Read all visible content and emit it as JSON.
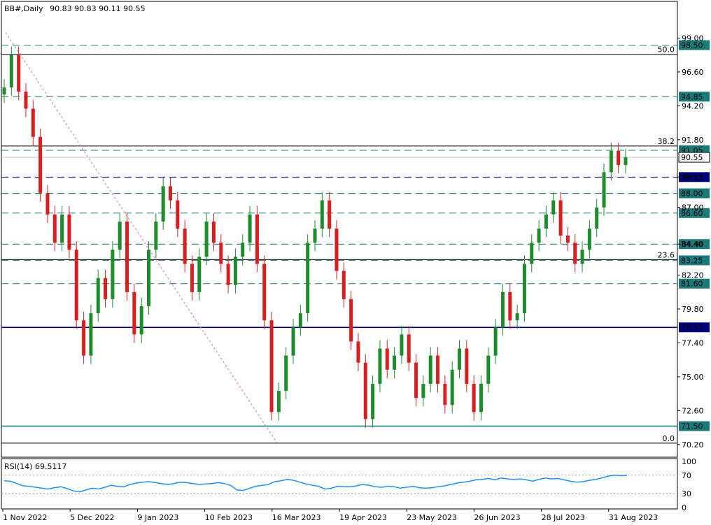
{
  "header": {
    "symbol": "BB#,Daily",
    "ohlc": "90.83 90.83 90.11 90.55"
  },
  "rsi_header": "RSI(14) 69.5117",
  "chart_data": [
    {
      "type": "candlestick",
      "title": "BB#,Daily",
      "ylim": [
        69.3,
        101.6
      ],
      "y_ticks": [
        "99.00",
        "96.60",
        "94.20",
        "91.80",
        "89.15",
        "87.00",
        "84.40",
        "82.20",
        "79.80",
        "77.40",
        "75.00",
        "72.60",
        "70.20"
      ],
      "x_ticks": [
        "1 Nov 2022",
        "5 Dec 2022",
        "9 Jan 2023",
        "10 Feb 2023",
        "16 Mar 2023",
        "19 Apr 2023",
        "23 May 2023",
        "26 Jun 2023",
        "28 Jul 2023",
        "31 Aug 2023"
      ],
      "up_color": "#1e8c2c",
      "down_color": "#d81e1e",
      "series_close": [
        {
          "date": "2022-11-01",
          "close": 95.5
        },
        {
          "date": "2022-11-04",
          "close": 97.8
        },
        {
          "date": "2022-11-08",
          "close": 95.2
        },
        {
          "date": "2022-11-11",
          "close": 94.0
        },
        {
          "date": "2022-11-15",
          "close": 92.0
        },
        {
          "date": "2022-11-18",
          "close": 88.0
        },
        {
          "date": "2022-11-22",
          "close": 86.5
        },
        {
          "date": "2022-11-25",
          "close": 84.5
        },
        {
          "date": "2022-11-29",
          "close": 86.5
        },
        {
          "date": "2022-12-02",
          "close": 84.0
        },
        {
          "date": "2022-12-06",
          "close": 79.0
        },
        {
          "date": "2022-12-09",
          "close": 76.5
        },
        {
          "date": "2022-12-13",
          "close": 79.5
        },
        {
          "date": "2022-12-16",
          "close": 82.0
        },
        {
          "date": "2022-12-20",
          "close": 80.5
        },
        {
          "date": "2022-12-23",
          "close": 84.0
        },
        {
          "date": "2022-12-28",
          "close": 86.0
        },
        {
          "date": "2022-12-31",
          "close": 81.0
        },
        {
          "date": "2023-01-04",
          "close": 78.0
        },
        {
          "date": "2023-01-09",
          "close": 80.0
        },
        {
          "date": "2023-01-13",
          "close": 84.0
        },
        {
          "date": "2023-01-17",
          "close": 86.0
        },
        {
          "date": "2023-01-20",
          "close": 88.5
        },
        {
          "date": "2023-01-24",
          "close": 87.5
        },
        {
          "date": "2023-01-27",
          "close": 85.5
        },
        {
          "date": "2023-01-31",
          "close": 83.0
        },
        {
          "date": "2023-02-03",
          "close": 81.0
        },
        {
          "date": "2023-02-07",
          "close": 83.5
        },
        {
          "date": "2023-02-10",
          "close": 86.0
        },
        {
          "date": "2023-02-14",
          "close": 84.5
        },
        {
          "date": "2023-02-17",
          "close": 83.0
        },
        {
          "date": "2023-02-21",
          "close": 81.5
        },
        {
          "date": "2023-02-24",
          "close": 83.5
        },
        {
          "date": "2023-02-28",
          "close": 84.5
        },
        {
          "date": "2023-03-03",
          "close": 86.5
        },
        {
          "date": "2023-03-07",
          "close": 83.0
        },
        {
          "date": "2023-03-10",
          "close": 79.0
        },
        {
          "date": "2023-03-14",
          "close": 72.5
        },
        {
          "date": "2023-03-17",
          "close": 74.0
        },
        {
          "date": "2023-03-21",
          "close": 76.5
        },
        {
          "date": "2023-03-24",
          "close": 78.5
        },
        {
          "date": "2023-03-28",
          "close": 79.5
        },
        {
          "date": "2023-04-04",
          "close": 84.5
        },
        {
          "date": "2023-04-07",
          "close": 85.5
        },
        {
          "date": "2023-04-11",
          "close": 87.5
        },
        {
          "date": "2023-04-14",
          "close": 85.5
        },
        {
          "date": "2023-04-18",
          "close": 82.5
        },
        {
          "date": "2023-04-21",
          "close": 80.5
        },
        {
          "date": "2023-04-25",
          "close": 77.5
        },
        {
          "date": "2023-04-28",
          "close": 76.0
        },
        {
          "date": "2023-05-02",
          "close": 72.0
        },
        {
          "date": "2023-05-05",
          "close": 74.5
        },
        {
          "date": "2023-05-09",
          "close": 77.0
        },
        {
          "date": "2023-05-12",
          "close": 75.5
        },
        {
          "date": "2023-05-16",
          "close": 76.5
        },
        {
          "date": "2023-05-19",
          "close": 78.0
        },
        {
          "date": "2023-05-23",
          "close": 76.0
        },
        {
          "date": "2023-05-26",
          "close": 73.5
        },
        {
          "date": "2023-05-30",
          "close": 74.5
        },
        {
          "date": "2023-06-02",
          "close": 76.5
        },
        {
          "date": "2023-06-06",
          "close": 74.5
        },
        {
          "date": "2023-06-09",
          "close": 73.0
        },
        {
          "date": "2023-06-13",
          "close": 75.5
        },
        {
          "date": "2023-06-16",
          "close": 77.0
        },
        {
          "date": "2023-06-20",
          "close": 74.5
        },
        {
          "date": "2023-06-23",
          "close": 72.5
        },
        {
          "date": "2023-06-27",
          "close": 74.5
        },
        {
          "date": "2023-06-30",
          "close": 76.5
        },
        {
          "date": "2023-07-04",
          "close": 78.5
        },
        {
          "date": "2023-07-07",
          "close": 81.0
        },
        {
          "date": "2023-07-11",
          "close": 79.0
        },
        {
          "date": "2023-07-14",
          "close": 79.5
        },
        {
          "date": "2023-07-18",
          "close": 83.0
        },
        {
          "date": "2023-07-21",
          "close": 84.5
        },
        {
          "date": "2023-07-25",
          "close": 85.5
        },
        {
          "date": "2023-07-28",
          "close": 86.5
        },
        {
          "date": "2023-08-01",
          "close": 87.5
        },
        {
          "date": "2023-08-04",
          "close": 85.0
        },
        {
          "date": "2023-08-08",
          "close": 84.5
        },
        {
          "date": "2023-08-11",
          "close": 83.0
        },
        {
          "date": "2023-08-15",
          "close": 84.0
        },
        {
          "date": "2023-08-18",
          "close": 85.5
        },
        {
          "date": "2023-08-22",
          "close": 87.0
        },
        {
          "date": "2023-08-25",
          "close": 89.5
        },
        {
          "date": "2023-08-29",
          "close": 91.0
        },
        {
          "date": "2023-09-01",
          "close": 90.0
        },
        {
          "date": "2023-09-05",
          "close": 90.55
        }
      ],
      "levels": [
        {
          "value": "98.50",
          "style": "dashed",
          "highlighted": true,
          "color": "#1a7a7a"
        },
        {
          "value": "94.85",
          "style": "dashed",
          "highlighted": true,
          "color": "#1a7a7a"
        },
        {
          "value": "91.05",
          "style": "dashed",
          "highlighted": true,
          "color": "#1a7a7a"
        },
        {
          "value": "89.15",
          "style": "dashed",
          "highlighted": true,
          "color": "#000080"
        },
        {
          "value": "88.00",
          "style": "dashed",
          "highlighted": true,
          "color": "#1a7a7a"
        },
        {
          "value": "86.60",
          "style": "dashed",
          "highlighted": true,
          "color": "#1a7a7a"
        },
        {
          "value": "84.40",
          "style": "dashed",
          "highlighted": true,
          "color": "#1a7a7a"
        },
        {
          "value": "83.25",
          "style": "dashed",
          "highlighted": true,
          "color": "#1a7a7a"
        },
        {
          "value": "81.60",
          "style": "dashed",
          "highlighted": true,
          "color": "#1a7a7a"
        },
        {
          "value": "78.50",
          "style": "solid",
          "highlighted": true,
          "color": "#000080"
        },
        {
          "value": "71.50",
          "style": "solid",
          "highlighted": true,
          "color": "#1a7a7a"
        }
      ],
      "current_price": "90.55",
      "fibonacci": [
        {
          "label": "50.0",
          "value": 97.85
        },
        {
          "label": "38.2",
          "value": 91.35
        },
        {
          "label": "23.6",
          "value": 83.3
        },
        {
          "label": "0.0",
          "value": 70.3
        }
      ]
    },
    {
      "type": "line",
      "title": "RSI(14) 69.5117",
      "ylim": [
        0,
        100
      ],
      "y_ticks": [
        "100",
        "70",
        "30",
        "0"
      ],
      "line_color": "#1e90ff",
      "values": [
        58,
        57,
        52,
        47,
        46,
        44,
        42,
        40,
        43,
        45,
        41,
        36,
        34,
        38,
        42,
        40,
        44,
        48,
        46,
        45,
        50,
        53,
        55,
        56,
        54,
        52,
        50,
        52,
        55,
        54,
        52,
        50,
        51,
        52,
        54,
        52,
        48,
        38,
        37,
        42,
        46,
        48,
        50,
        56,
        58,
        61,
        59,
        55,
        51,
        48,
        46,
        40,
        42,
        46,
        45,
        45,
        47,
        50,
        48,
        45,
        44,
        46,
        45,
        42,
        44,
        46,
        43,
        42,
        43,
        45,
        47,
        50,
        53,
        55,
        57,
        60,
        61,
        63,
        60,
        64,
        62,
        61,
        62,
        60,
        57,
        61,
        64,
        62,
        63,
        60,
        57,
        55,
        56,
        59,
        61,
        64,
        68,
        70,
        69,
        69.5
      ]
    }
  ]
}
